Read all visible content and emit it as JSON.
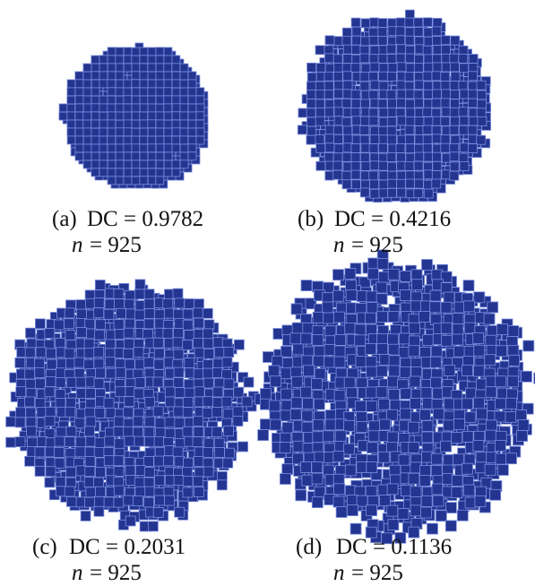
{
  "panels": [
    {
      "label": "(a)",
      "caption": "DC = 0.9782",
      "n_symbol": "n",
      "n_text": "= 925"
    },
    {
      "label": "(b)",
      "caption": "DC = 0.4216",
      "n_symbol": "n",
      "n_text": "= 925"
    },
    {
      "label": "(c)",
      "caption": "DC = 0.2031",
      "n_symbol": "n",
      "n_text": "= 925"
    },
    {
      "label": "(d)",
      "caption": "DC = 0.1136",
      "n_symbol": "n",
      "n_text": "= 925"
    }
  ]
}
